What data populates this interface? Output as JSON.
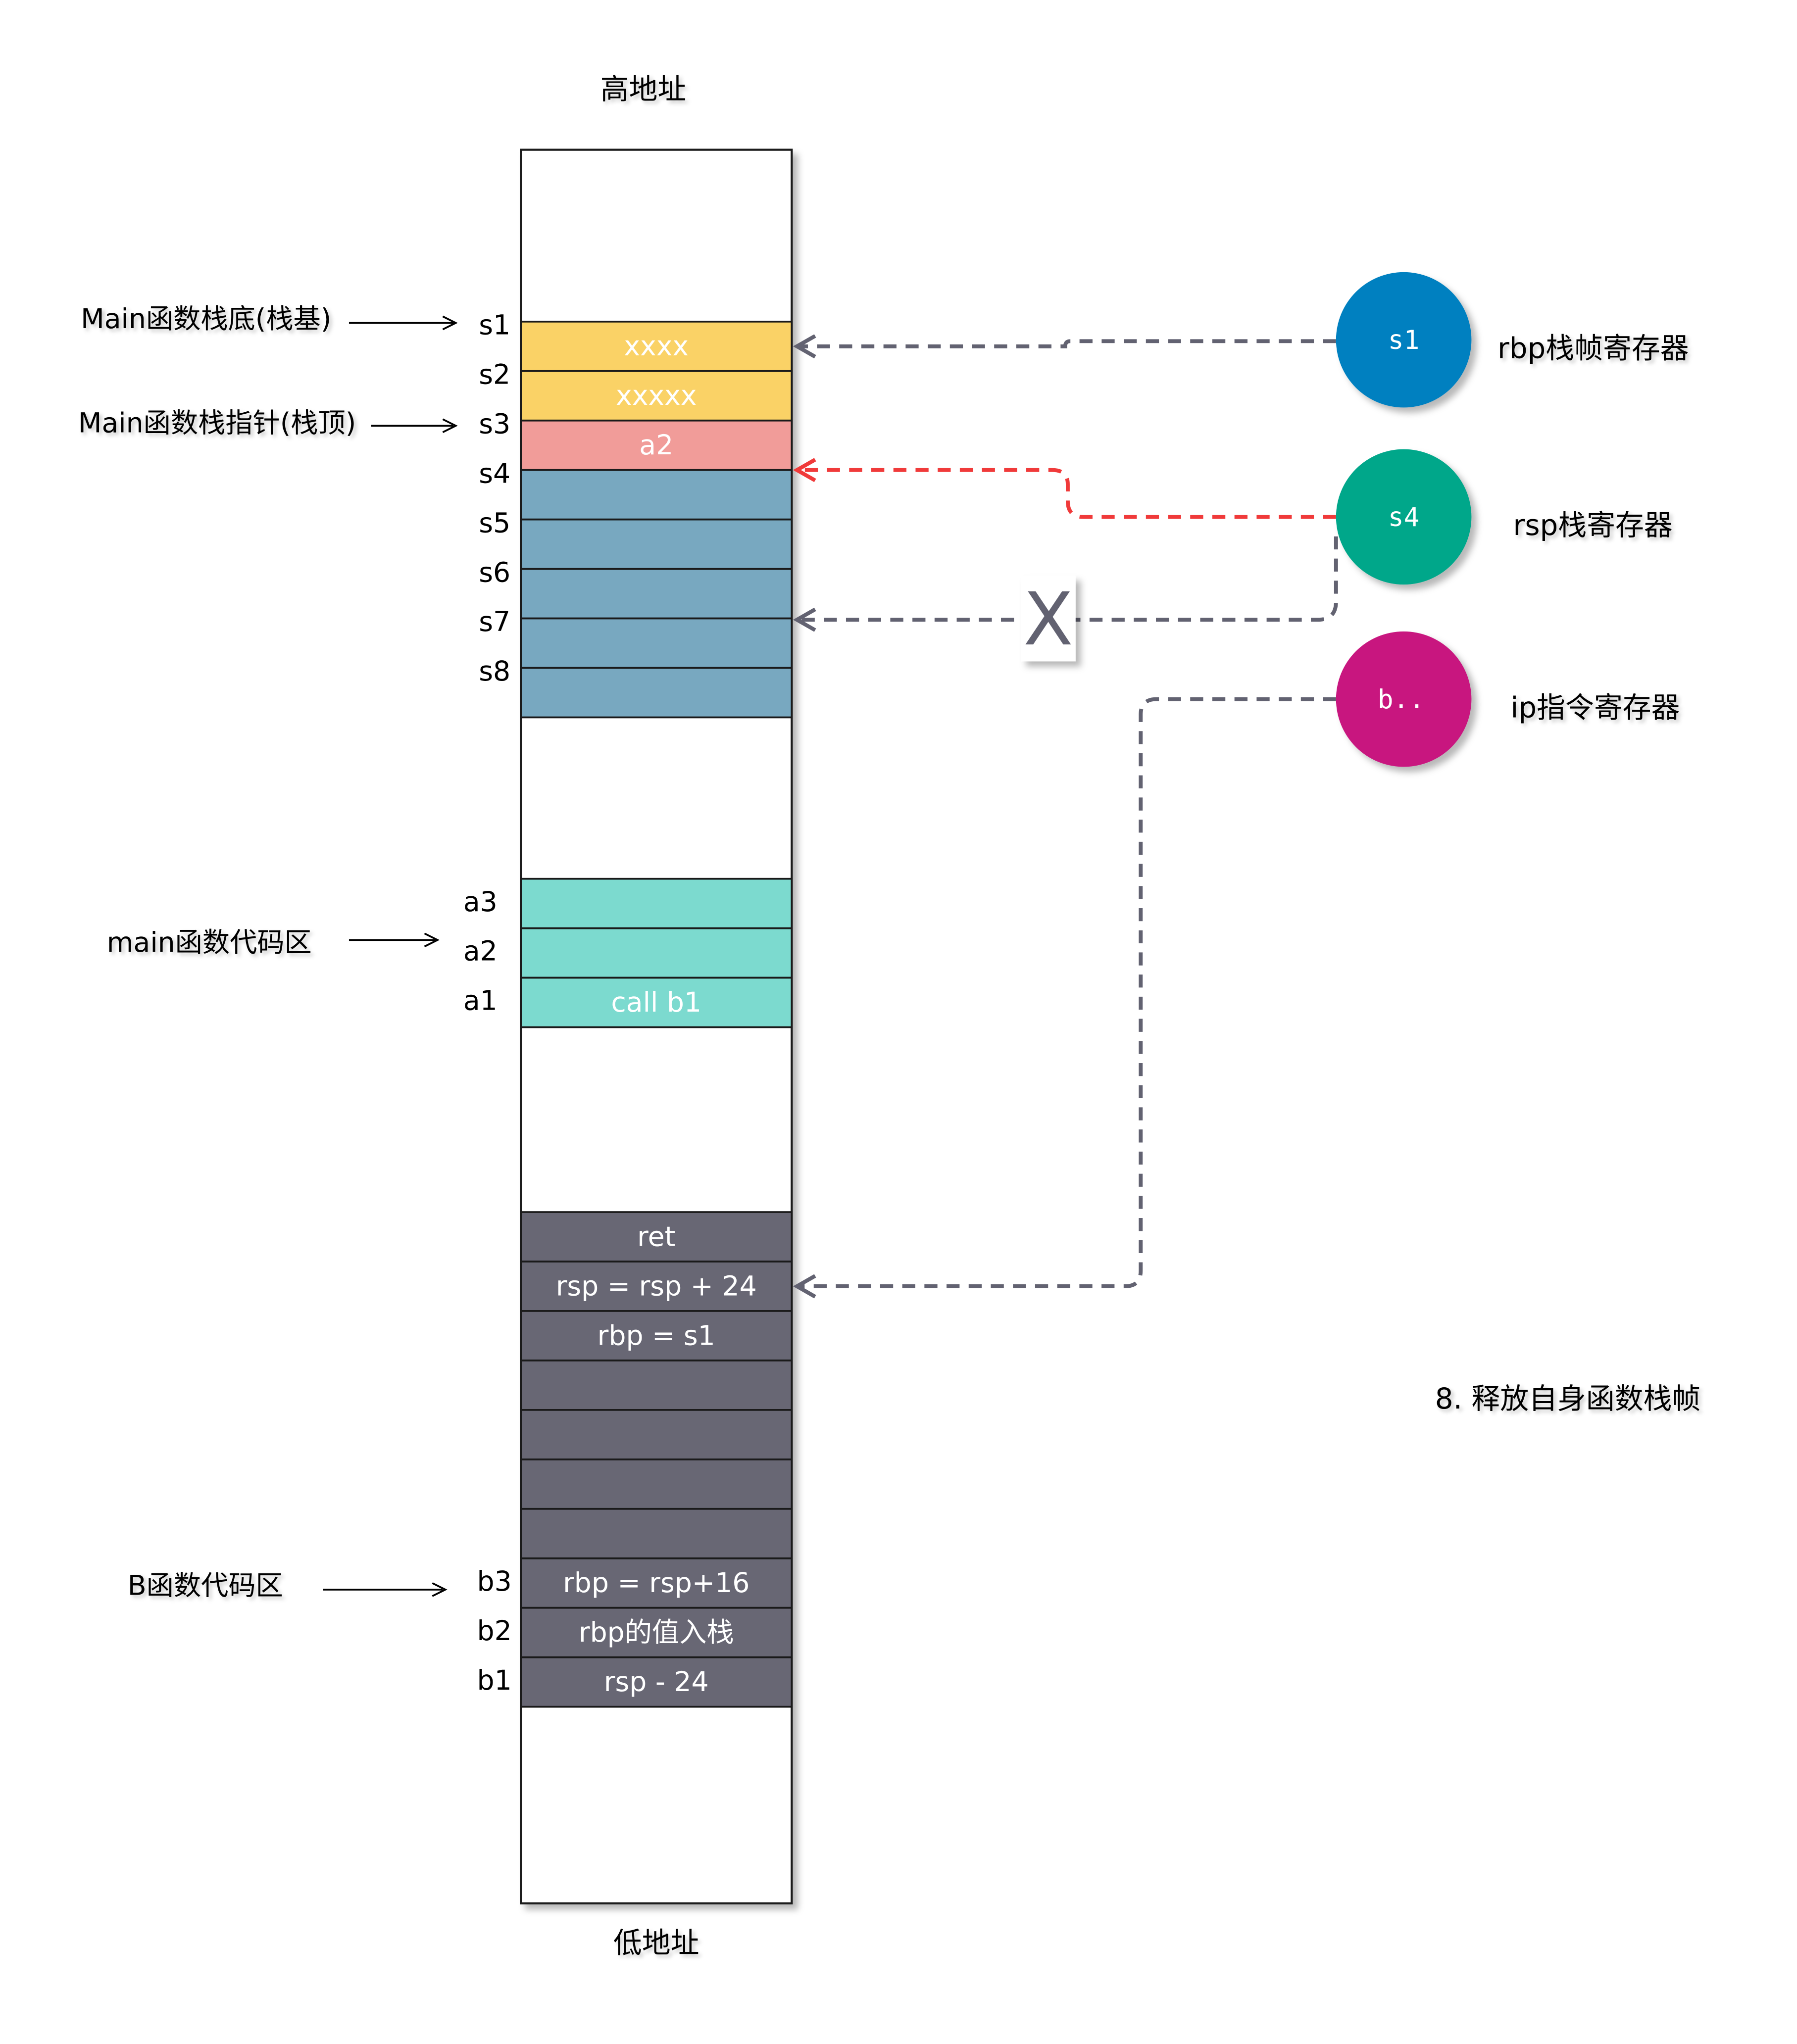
{
  "labels": {
    "high_address": "高地址",
    "low_address": "低地址",
    "step_caption": "8. 释放自身函数栈帧",
    "cross_mark": "X"
  },
  "stack_slots": [
    {
      "label": "s1",
      "text": "xxxx",
      "color": "#FAD266"
    },
    {
      "label": "s2",
      "text": "xxxxx",
      "color": "#FAD266"
    },
    {
      "label": "s3",
      "text": "a2",
      "color": "#F19C99"
    },
    {
      "label": "s4",
      "text": "",
      "color": "#78A8C0"
    },
    {
      "label": "s5",
      "text": "",
      "color": "#78A8C0"
    },
    {
      "label": "s6",
      "text": "",
      "color": "#78A8C0"
    },
    {
      "label": "s7",
      "text": "",
      "color": "#78A8C0"
    },
    {
      "label": "s8",
      "text": "",
      "color": "#78A8C0"
    }
  ],
  "main_code": [
    {
      "label": "a3",
      "text": "",
      "color": "#7CDACF"
    },
    {
      "label": "a2",
      "text": "",
      "color": "#7CDACF"
    },
    {
      "label": "a1",
      "text": "call  b1",
      "color": "#7CDACF"
    }
  ],
  "b_code": [
    {
      "label": "",
      "text": "ret",
      "color": "#686774"
    },
    {
      "label": "",
      "text": "rsp = rsp + 24",
      "color": "#686774"
    },
    {
      "label": "",
      "text": "rbp = s1",
      "color": "#686774"
    },
    {
      "label": "",
      "text": "",
      "color": "#686774"
    },
    {
      "label": "",
      "text": "",
      "color": "#686774"
    },
    {
      "label": "",
      "text": "",
      "color": "#686774"
    },
    {
      "label": "",
      "text": "",
      "color": "#686774"
    },
    {
      "label": "b3",
      "text": "rbp = rsp+16",
      "color": "#686774"
    },
    {
      "label": "b2",
      "text": "rbp的值入栈",
      "color": "#686774"
    },
    {
      "label": "b1",
      "text": "rsp - 24",
      "color": "#686774"
    }
  ],
  "annotations": [
    {
      "text": "Main函数栈底(栈基)",
      "target": "s1"
    },
    {
      "text": "Main函数栈指针(栈顶)",
      "target": "s3"
    },
    {
      "text": "main函数代码区",
      "target": "a2"
    },
    {
      "text": "B函数代码区",
      "target": "b3"
    }
  ],
  "registers": [
    {
      "value": "s1",
      "name": "rbp栈帧寄存器",
      "color": "#0480C0"
    },
    {
      "value": "s4",
      "name": "rsp栈寄存器",
      "color": "#01A78A"
    },
    {
      "value": "b..",
      "name": "ip指令寄存器",
      "color": "#C8167F"
    }
  ],
  "arrow_colors": {
    "gray": "#626271",
    "red": "#F03A3A"
  }
}
